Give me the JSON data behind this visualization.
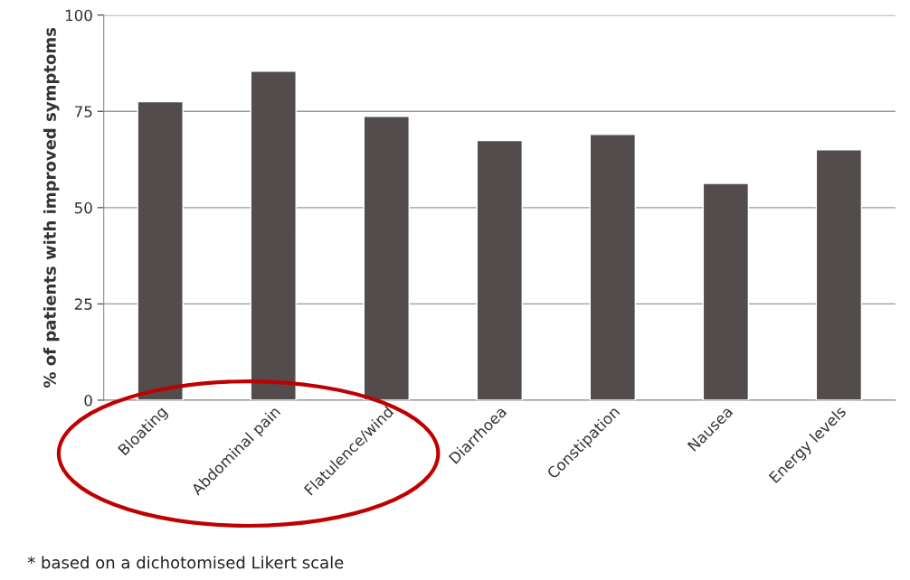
{
  "chart_data": {
    "type": "bar",
    "ylabel": "% of patients with improved symptoms",
    "categories": [
      "Bloating",
      "Abdominal pain",
      "Flatulence/wind",
      "Diarrhoea",
      "Constipation",
      "Nausea",
      "Energy levels"
    ],
    "values": [
      77.5,
      85.4,
      73.7,
      67.4,
      69.0,
      56.3,
      65.0
    ],
    "color": "#524c4c",
    "ylim": [
      0,
      100
    ],
    "yticks": [
      0,
      25,
      50,
      75,
      100
    ],
    "grid": "y",
    "annotations": [
      "* based on a dichotomised Likert scale"
    ]
  }
}
